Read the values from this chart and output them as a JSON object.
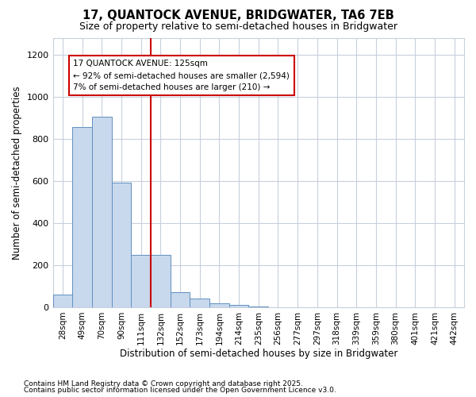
{
  "title_line1": "17, QUANTOCK AVENUE, BRIDGWATER, TA6 7EB",
  "title_line2": "Size of property relative to semi-detached houses in Bridgwater",
  "xlabel": "Distribution of semi-detached houses by size in Bridgwater",
  "ylabel": "Number of semi-detached properties",
  "categories": [
    "28sqm",
    "49sqm",
    "70sqm",
    "90sqm",
    "111sqm",
    "132sqm",
    "152sqm",
    "173sqm",
    "194sqm",
    "214sqm",
    "235sqm",
    "256sqm",
    "277sqm",
    "297sqm",
    "318sqm",
    "339sqm",
    "359sqm",
    "380sqm",
    "401sqm",
    "421sqm",
    "442sqm"
  ],
  "values": [
    62,
    855,
    905,
    590,
    250,
    250,
    70,
    40,
    20,
    10,
    5,
    0,
    0,
    0,
    0,
    0,
    0,
    0,
    0,
    0,
    0
  ],
  "bar_color": "#c8d8ed",
  "bar_edge_color": "#6090c0",
  "vline_color": "#cc0000",
  "vline_x_index": 5,
  "annotation_title": "17 QUANTOCK AVENUE: 125sqm",
  "annotation_line1": "← 92% of semi-detached houses are smaller (2,594)",
  "annotation_line2": "7% of semi-detached houses are larger (210) →",
  "annotation_box_color": "#cc0000",
  "annotation_bg": "#ffffff",
  "ylim": [
    0,
    1280
  ],
  "yticks": [
    0,
    200,
    400,
    600,
    800,
    1000,
    1200
  ],
  "footnote1": "Contains HM Land Registry data © Crown copyright and database right 2025.",
  "footnote2": "Contains public sector information licensed under the Open Government Licence v3.0.",
  "bg_color": "#ffffff",
  "plot_bg_color": "#ffffff",
  "grid_color": "#c8d0dc"
}
